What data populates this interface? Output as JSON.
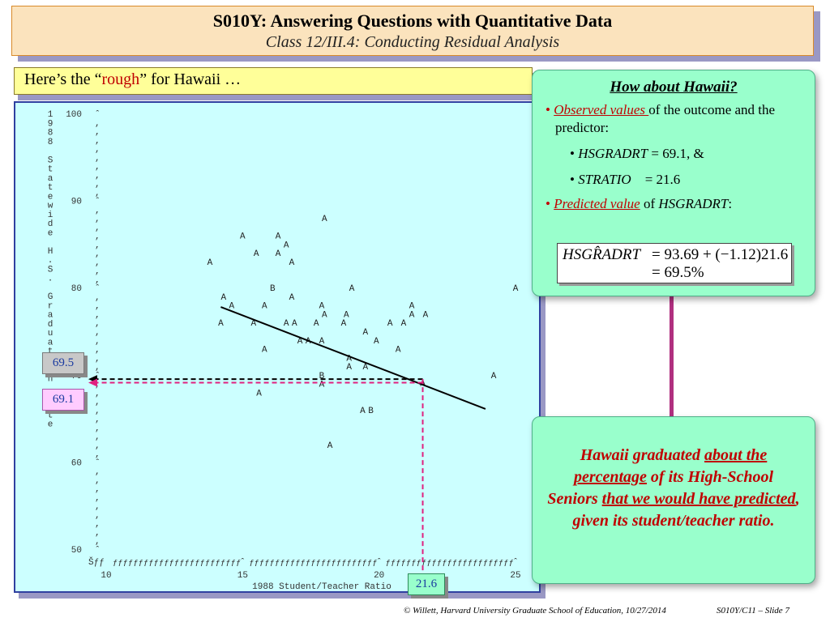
{
  "header": {
    "title": "S010Y: Answering Questions with Quantitative Data",
    "subtitle": "Class 12/III.4: Conducting Residual Analysis"
  },
  "rough_box": {
    "prefix": "Here’s the “",
    "emphasis": "rough",
    "suffix": "” for Hawaii …"
  },
  "tags": {
    "observed_y": "69.1",
    "predicted_y": "69.5",
    "observed_x": "21.6"
  },
  "chart_data": {
    "type": "scatter",
    "xlabel": "1988 Student/Teacher Ratio",
    "ylabel": "1988 Statewide H.S. Graduation Rate",
    "ylabel_vertical_text": "1988 Statewide H.S. Graduation Rate",
    "xlim": [
      10,
      25
    ],
    "ylim": [
      50,
      100
    ],
    "x_ticks": [
      10,
      15,
      20,
      25
    ],
    "y_ticks": [
      100,
      90,
      80,
      70,
      60,
      50
    ],
    "axis_glyph_fill": "ƒƒƒƒƒƒƒƒƒƒƒƒƒƒƒƒƒƒƒƒƒƒƒƒƒ",
    "axis_corner_glyph": "Šƒƒ",
    "y_axis_tick_glyph": "ˆ",
    "y_axis_minor_glyph": ",",
    "fit_line": {
      "intercept": 93.69,
      "slope": -1.12,
      "label": "HSGRADRT-hat = 93.69 + (−1.12)STRATIO"
    },
    "highlight": {
      "name": "Hawaii",
      "x": 21.6,
      "y_observed": 69.1,
      "y_predicted": 69.5
    },
    "points": [
      {
        "x": 18.0,
        "y": 88,
        "label": "A"
      },
      {
        "x": 15.0,
        "y": 86,
        "label": "A"
      },
      {
        "x": 16.3,
        "y": 86,
        "label": "A"
      },
      {
        "x": 16.6,
        "y": 85,
        "label": "A"
      },
      {
        "x": 15.5,
        "y": 84,
        "label": "A"
      },
      {
        "x": 16.3,
        "y": 84,
        "label": "A"
      },
      {
        "x": 13.8,
        "y": 83,
        "label": "A"
      },
      {
        "x": 16.8,
        "y": 83,
        "label": "A"
      },
      {
        "x": 16.1,
        "y": 80,
        "label": "B"
      },
      {
        "x": 19.0,
        "y": 80,
        "label": "A"
      },
      {
        "x": 25.0,
        "y": 80,
        "label": "A"
      },
      {
        "x": 14.3,
        "y": 79,
        "label": "A"
      },
      {
        "x": 16.8,
        "y": 79,
        "label": "A"
      },
      {
        "x": 14.6,
        "y": 78,
        "label": "A"
      },
      {
        "x": 15.8,
        "y": 78,
        "label": "A"
      },
      {
        "x": 17.9,
        "y": 78,
        "label": "A"
      },
      {
        "x": 21.2,
        "y": 78,
        "label": "A"
      },
      {
        "x": 18.0,
        "y": 77,
        "label": "A"
      },
      {
        "x": 18.8,
        "y": 77,
        "label": "A"
      },
      {
        "x": 21.2,
        "y": 77,
        "label": "A"
      },
      {
        "x": 21.7,
        "y": 77,
        "label": "A"
      },
      {
        "x": 14.2,
        "y": 76,
        "label": "A"
      },
      {
        "x": 15.4,
        "y": 76,
        "label": "A"
      },
      {
        "x": 16.6,
        "y": 76,
        "label": "A"
      },
      {
        "x": 16.9,
        "y": 76,
        "label": "A"
      },
      {
        "x": 17.7,
        "y": 76,
        "label": "A"
      },
      {
        "x": 18.7,
        "y": 76,
        "label": "A"
      },
      {
        "x": 20.4,
        "y": 76,
        "label": "A"
      },
      {
        "x": 20.9,
        "y": 76,
        "label": "A"
      },
      {
        "x": 19.5,
        "y": 75,
        "label": "A"
      },
      {
        "x": 17.1,
        "y": 74,
        "label": "A"
      },
      {
        "x": 17.4,
        "y": 74,
        "label": "A"
      },
      {
        "x": 17.9,
        "y": 74,
        "label": "A"
      },
      {
        "x": 19.9,
        "y": 74,
        "label": "A"
      },
      {
        "x": 15.8,
        "y": 73,
        "label": "A"
      },
      {
        "x": 20.7,
        "y": 73,
        "label": "A"
      },
      {
        "x": 18.9,
        "y": 72,
        "label": "A"
      },
      {
        "x": 21.6,
        "y": 69.1,
        "label": "A"
      },
      {
        "x": 18.9,
        "y": 71,
        "label": "A"
      },
      {
        "x": 19.5,
        "y": 71,
        "label": "A"
      },
      {
        "x": 17.9,
        "y": 70,
        "label": "B"
      },
      {
        "x": 24.2,
        "y": 70,
        "label": "A"
      },
      {
        "x": 17.9,
        "y": 69,
        "label": "A"
      },
      {
        "x": 15.6,
        "y": 68,
        "label": "A"
      },
      {
        "x": 19.4,
        "y": 66,
        "label": "A"
      },
      {
        "x": 19.7,
        "y": 66,
        "label": "B"
      },
      {
        "x": 18.2,
        "y": 62,
        "label": "A"
      }
    ]
  },
  "panel_top": {
    "heading": "How about Hawaii?",
    "bullet1_red": "Observed values ",
    "bullet1_rest": "of the outcome and the predictor:",
    "sub1_var": "HSGRADRT",
    "sub1_val": " = 69.1, &",
    "sub2_var": "STRATIO",
    "sub2_val": "= 21.6",
    "bullet2_red": "Predicted value",
    "bullet2_mid": " of ",
    "bullet2_var": "HSGRADRT",
    "bullet2_end": ":",
    "eq_lhs": "HSGR̂ADRT",
    "eq_rhs1": "= 93.69 + (−1.12)21.6",
    "eq_rhs2": "= 69.5%"
  },
  "panel_bottom": {
    "s1": "Hawaii graduated ",
    "s2": "about the percentage",
    "s3": " of its High-School Seniors ",
    "s4": "that we would have predicted",
    "s5": ", given its student/teacher ratio."
  },
  "footer": {
    "left": "© Willett, Harvard University Graduate School of Education, 10/27/2014",
    "right": "S010Y/C11 – Slide 7"
  }
}
